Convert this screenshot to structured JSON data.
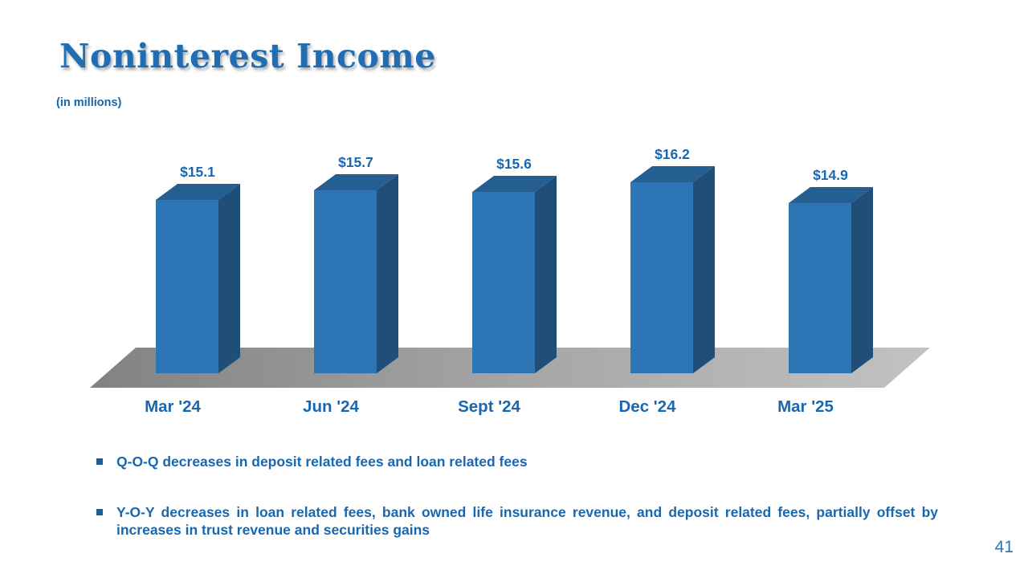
{
  "slide": {
    "title": "Noninterest Income",
    "subtitle": "(in millions)",
    "page_number": "41",
    "bullets": [
      "Q-O-Q decreases in deposit related fees and loan related fees",
      "Y-O-Y decreases in loan related fees, bank owned life insurance revenue, and deposit related fees, partially offset by increases in trust revenue and securities gains"
    ]
  },
  "chart_data": {
    "type": "bar",
    "style": "3d-column",
    "title": "Noninterest Income",
    "units": "in millions",
    "categories": [
      "Mar '24",
      "Jun '24",
      "Sept '24",
      "Dec '24",
      "Mar '25"
    ],
    "values": [
      15.1,
      15.7,
      15.6,
      16.2,
      14.9
    ],
    "data_labels": [
      "$15.1",
      "$15.7",
      "$15.6",
      "$16.2",
      "$14.9"
    ],
    "xlabel": "",
    "ylabel": "",
    "axes_visible": false,
    "grid": false,
    "legend": "none",
    "colors": {
      "bar_front": "#2E75B6",
      "bar_top": "#255E91",
      "bar_side": "#1F4E79",
      "floor_dark": "#828282",
      "floor_mid": "#A8A8A8",
      "floor_light": "#C2C2C2",
      "label_blue": "#1768B1"
    }
  }
}
